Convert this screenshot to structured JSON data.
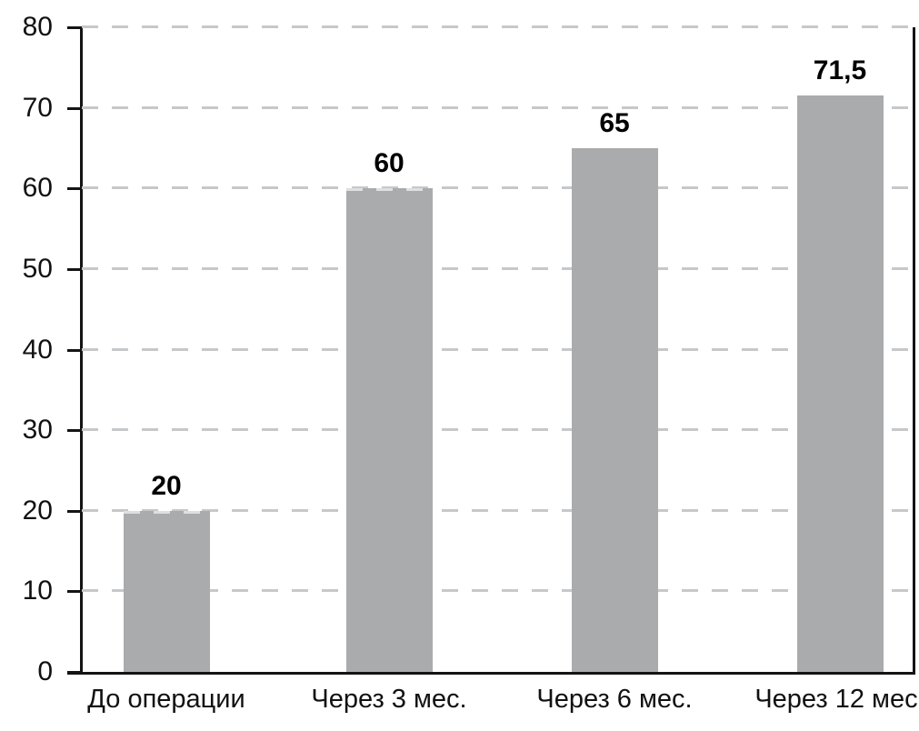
{
  "chart_data": {
    "type": "bar",
    "title": "",
    "xlabel": "",
    "ylabel": "",
    "categories": [
      "До операции",
      "Через 3 мес.",
      "Через 6 мес.",
      "Через 12 мес."
    ],
    "values": [
      20,
      60,
      65,
      71.5
    ],
    "value_labels": [
      "20",
      "60",
      "65",
      "71,5"
    ],
    "ylim": [
      0,
      80
    ],
    "yticks": [
      0,
      10,
      20,
      30,
      40,
      50,
      60,
      70,
      80
    ],
    "grid": "horizontal-dashed",
    "legend": "none",
    "colors": {
      "bar": "#a9abad",
      "gridline": "#c7c8ca",
      "bar_top_dash": "#dddfe0",
      "axis": "#141414",
      "text": "#111111",
      "value_text": "#000000",
      "background": "#ffffff"
    }
  }
}
